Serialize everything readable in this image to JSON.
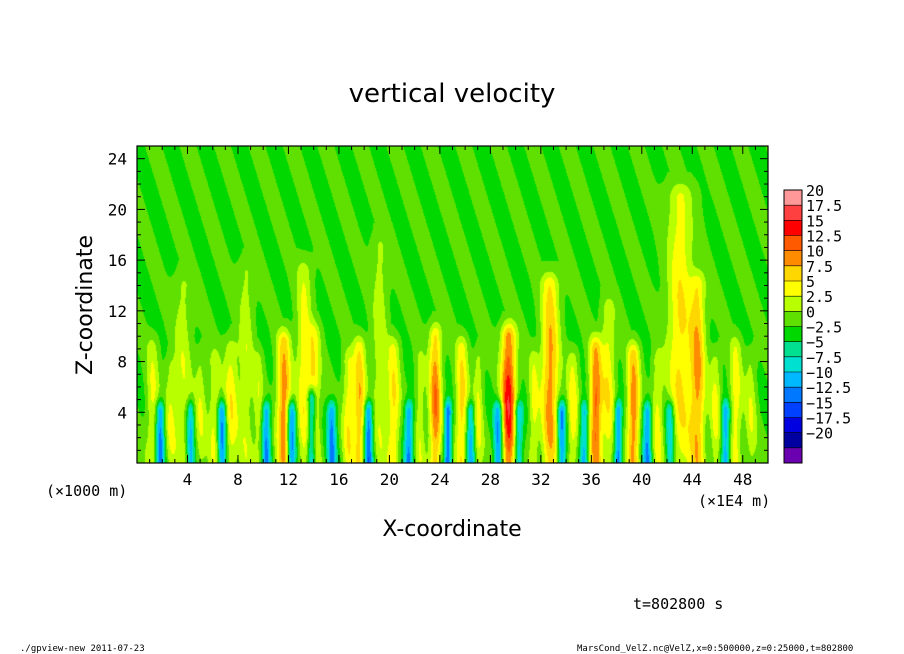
{
  "chart_data": {
    "type": "heatmap",
    "title": "vertical velocity",
    "xlabel": "X-coordinate",
    "ylabel": "Z-coordinate",
    "x_unit_label": "(×1000 m)",
    "x_unit_label_right": "(×1E4 m)",
    "x_range": [
      0,
      50
    ],
    "y_range": [
      0,
      25
    ],
    "x_ticks": [
      4,
      8,
      12,
      16,
      20,
      24,
      28,
      32,
      36,
      40,
      44,
      48
    ],
    "y_ticks": [
      4,
      8,
      12,
      16,
      20,
      24
    ],
    "colorbar": {
      "levels": [
        20,
        17.5,
        15,
        12.5,
        10,
        7.5,
        5,
        2.5,
        0,
        -2.5,
        -5,
        -7.5,
        -10,
        -12.5,
        -15,
        -17.5,
        -20
      ],
      "colors": [
        "#ff9999",
        "#ff4040",
        "#ff0000",
        "#ff5a00",
        "#ff8c00",
        "#ffd700",
        "#ffff00",
        "#b8ff00",
        "#5fe000",
        "#00d800",
        "#00e090",
        "#00e0d0",
        "#00b8ff",
        "#0078ff",
        "#0040ff",
        "#0000e0",
        "#0000a0",
        "#6a00b0"
      ]
    },
    "plumes": [
      {
        "x": 1.2,
        "top": 9,
        "w": 0.5,
        "amp": 5
      },
      {
        "x": 2.6,
        "top": 7.5,
        "w": 0.45,
        "amp": 4
      },
      {
        "x": 3.6,
        "top": 14,
        "w": 0.7,
        "amp": 4
      },
      {
        "x": 5.0,
        "top": 8,
        "w": 0.45,
        "amp": 4
      },
      {
        "x": 6.1,
        "top": 8,
        "w": 0.45,
        "amp": 5
      },
      {
        "x": 7.4,
        "top": 9,
        "w": 0.55,
        "amp": 6
      },
      {
        "x": 8.6,
        "top": 15,
        "w": 0.6,
        "amp": 4
      },
      {
        "x": 9.6,
        "top": 8,
        "w": 0.4,
        "amp": 4
      },
      {
        "x": 11.6,
        "top": 9.5,
        "w": 0.55,
        "amp": 11
      },
      {
        "x": 13.2,
        "top": 15,
        "w": 0.6,
        "amp": 6
      },
      {
        "x": 14.0,
        "top": 10,
        "w": 0.5,
        "amp": 7
      },
      {
        "x": 16.7,
        "top": 8,
        "w": 0.45,
        "amp": 6
      },
      {
        "x": 17.6,
        "top": 9,
        "w": 0.5,
        "amp": 9
      },
      {
        "x": 19.2,
        "top": 17,
        "w": 0.6,
        "amp": 4
      },
      {
        "x": 20.3,
        "top": 9,
        "w": 0.5,
        "amp": 7
      },
      {
        "x": 22.4,
        "top": 8,
        "w": 0.4,
        "amp": 4
      },
      {
        "x": 23.6,
        "top": 10,
        "w": 0.5,
        "amp": 11
      },
      {
        "x": 25.7,
        "top": 9,
        "w": 0.5,
        "amp": 8
      },
      {
        "x": 27.0,
        "top": 8,
        "w": 0.4,
        "amp": 5
      },
      {
        "x": 29.4,
        "top": 10,
        "w": 0.6,
        "amp": 15
      },
      {
        "x": 31.4,
        "top": 8,
        "w": 0.4,
        "amp": 5
      },
      {
        "x": 32.7,
        "top": 14,
        "w": 0.7,
        "amp": 10
      },
      {
        "x": 34.5,
        "top": 8,
        "w": 0.45,
        "amp": 6
      },
      {
        "x": 36.3,
        "top": 9,
        "w": 0.5,
        "amp": 12
      },
      {
        "x": 37.3,
        "top": 12,
        "w": 0.55,
        "amp": 6
      },
      {
        "x": 39.3,
        "top": 8.5,
        "w": 0.5,
        "amp": 11
      },
      {
        "x": 41.2,
        "top": 8,
        "w": 0.45,
        "amp": 5
      },
      {
        "x": 43.0,
        "top": 21,
        "w": 1.0,
        "amp": 7
      },
      {
        "x": 44.4,
        "top": 14,
        "w": 0.6,
        "amp": 9
      },
      {
        "x": 45.8,
        "top": 8,
        "w": 0.45,
        "amp": 5
      },
      {
        "x": 47.4,
        "top": 9,
        "w": 0.5,
        "amp": 6
      },
      {
        "x": 48.6,
        "top": 8,
        "w": 0.45,
        "amp": 4
      }
    ],
    "downdrafts": [
      {
        "x": 1.8,
        "top": 4,
        "w": 0.35,
        "amp": -10
      },
      {
        "x": 4.2,
        "top": 4,
        "w": 0.3,
        "amp": -8
      },
      {
        "x": 6.7,
        "top": 4,
        "w": 0.35,
        "amp": -10
      },
      {
        "x": 10.2,
        "top": 4,
        "w": 0.35,
        "amp": -9
      },
      {
        "x": 12.2,
        "top": 4,
        "w": 0.35,
        "amp": -11
      },
      {
        "x": 13.8,
        "top": 5,
        "w": 0.35,
        "amp": -12
      },
      {
        "x": 15.4,
        "top": 4,
        "w": 0.35,
        "amp": -9
      },
      {
        "x": 18.3,
        "top": 4,
        "w": 0.35,
        "amp": -11
      },
      {
        "x": 21.5,
        "top": 4,
        "w": 0.35,
        "amp": -9
      },
      {
        "x": 24.6,
        "top": 4,
        "w": 0.3,
        "amp": -11
      },
      {
        "x": 26.4,
        "top": 4,
        "w": 0.35,
        "amp": -8
      },
      {
        "x": 28.6,
        "top": 4,
        "w": 0.35,
        "amp": -10
      },
      {
        "x": 30.2,
        "top": 4,
        "w": 0.35,
        "amp": -8
      },
      {
        "x": 33.6,
        "top": 4,
        "w": 0.35,
        "amp": -10
      },
      {
        "x": 35.4,
        "top": 4,
        "w": 0.35,
        "amp": -8
      },
      {
        "x": 38.1,
        "top": 4,
        "w": 0.3,
        "amp": -10
      },
      {
        "x": 40.4,
        "top": 4,
        "w": 0.35,
        "amp": -9
      },
      {
        "x": 42.2,
        "top": 4,
        "w": 0.35,
        "amp": -8
      },
      {
        "x": 46.6,
        "top": 4,
        "w": 0.35,
        "amp": -9
      }
    ]
  },
  "time_label": "t=802800 s",
  "footer": {
    "left": "./gpview-new  2011-07-23",
    "right": "MarsCond_VelZ.nc@VelZ,x=0:500000,z=0:25000,t=802800"
  }
}
